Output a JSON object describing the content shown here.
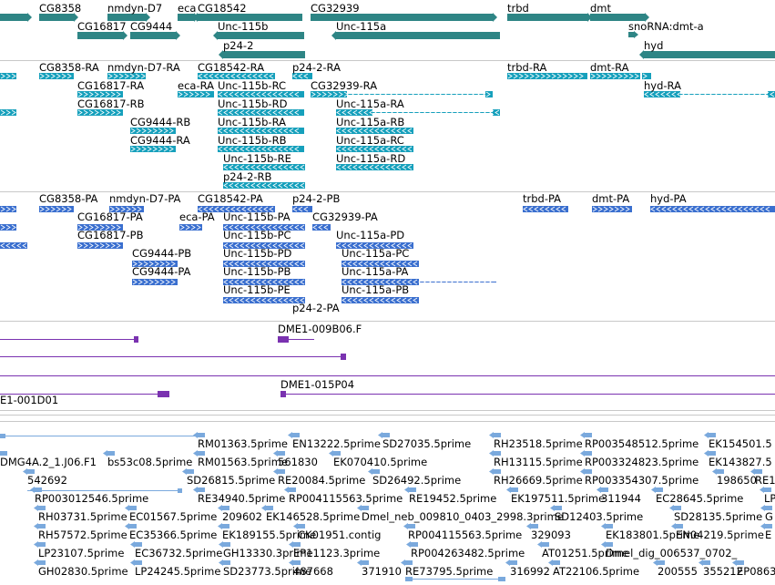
{
  "colors": {
    "gene": "#2e8585",
    "transcript_ra": "#16a0bc",
    "transcript_pa": "#3a6fcf",
    "clone": "#7a32b0",
    "est": "#7aa9dd",
    "separator": "#c8c8c8"
  },
  "tracks": {
    "gene_track": {
      "features": [
        {
          "id": "g1",
          "label": ""
        },
        {
          "id": "g2",
          "label": "CG8358"
        },
        {
          "id": "g3",
          "label": "nmdyn-D7"
        },
        {
          "id": "g4",
          "label": "eca"
        },
        {
          "id": "g5",
          "label": "CG18542"
        },
        {
          "id": "g6",
          "label": "CG32939"
        },
        {
          "id": "g7",
          "label": "trbd"
        },
        {
          "id": "g8",
          "label": "dmt"
        },
        {
          "id": "g9",
          "label": "CG16817"
        },
        {
          "id": "g10",
          "label": "CG9444"
        },
        {
          "id": "g11",
          "label": "Unc-115b"
        },
        {
          "id": "g12",
          "label": "Unc-115a"
        },
        {
          "id": "g13",
          "label": "snoRNA:dmt-a"
        },
        {
          "id": "g14",
          "label": "p24-2"
        },
        {
          "id": "g15",
          "label": "hyd"
        }
      ]
    },
    "ra_track": {
      "features": [
        {
          "id": "r1",
          "label": ""
        },
        {
          "id": "r2",
          "label": "CG8358-RA"
        },
        {
          "id": "r3",
          "label": "nmdyn-D7-RA"
        },
        {
          "id": "r4",
          "label": "CG18542-RA"
        },
        {
          "id": "r5",
          "label": "p24-2-RA"
        },
        {
          "id": "r6",
          "label": "trbd-RA"
        },
        {
          "id": "r7",
          "label": "dmt-RA"
        },
        {
          "id": "r8",
          "label": ""
        },
        {
          "id": "r9",
          "label": "CG16817-RA"
        },
        {
          "id": "r10",
          "label": "eca-RA"
        },
        {
          "id": "r11",
          "label": "Unc-115b-RC"
        },
        {
          "id": "r12",
          "label": "CG32939-RA"
        },
        {
          "id": "r13",
          "label": "hyd-RA"
        },
        {
          "id": "r14",
          "label": ""
        },
        {
          "id": "r15",
          "label": "CG16817-RB"
        },
        {
          "id": "r16",
          "label": "Unc-115b-RD"
        },
        {
          "id": "r17",
          "label": "Unc-115a-RA"
        },
        {
          "id": "r18",
          "label": "CG9444-RB"
        },
        {
          "id": "r19",
          "label": "Unc-115b-RA"
        },
        {
          "id": "r20",
          "label": "Unc-115a-RB"
        },
        {
          "id": "r21",
          "label": "CG9444-RA"
        },
        {
          "id": "r22",
          "label": "Unc-115b-RB"
        },
        {
          "id": "r23",
          "label": "Unc-115a-RC"
        },
        {
          "id": "r24",
          "label": "Unc-115b-RE"
        },
        {
          "id": "r25",
          "label": "Unc-115a-RD"
        },
        {
          "id": "r26",
          "label": "p24-2-RB"
        }
      ]
    },
    "pa_track": {
      "features": [
        {
          "id": "p1",
          "label": ""
        },
        {
          "id": "p2",
          "label": "CG8358-PA"
        },
        {
          "id": "p3",
          "label": "nmdyn-D7-PA"
        },
        {
          "id": "p4",
          "label": "CG18542-PA"
        },
        {
          "id": "p5",
          "label": "p24-2-PB"
        },
        {
          "id": "p6",
          "label": "trbd-PA"
        },
        {
          "id": "p7",
          "label": "dmt-PA"
        },
        {
          "id": "p8",
          "label": "hyd-PA"
        },
        {
          "id": "p9",
          "label": ""
        },
        {
          "id": "p10",
          "label": "CG16817-PA"
        },
        {
          "id": "p11",
          "label": "eca-PA"
        },
        {
          "id": "p12",
          "label": "Unc-115b-PA"
        },
        {
          "id": "p13",
          "label": "CG32939-PA"
        },
        {
          "id": "p14",
          "label": ""
        },
        {
          "id": "p15",
          "label": "CG16817-PB"
        },
        {
          "id": "p16",
          "label": "Unc-115b-PC"
        },
        {
          "id": "p17",
          "label": "Unc-115a-PD"
        },
        {
          "id": "p18",
          "label": "CG9444-PB"
        },
        {
          "id": "p19",
          "label": "Unc-115b-PD"
        },
        {
          "id": "p20",
          "label": "Unc-115a-PC"
        },
        {
          "id": "p21",
          "label": "CG9444-PA"
        },
        {
          "id": "p22",
          "label": "Unc-115b-PB"
        },
        {
          "id": "p23",
          "label": "Unc-115a-PA"
        },
        {
          "id": "p24",
          "label": "Unc-115b-PE"
        },
        {
          "id": "p25",
          "label": "Unc-115a-PB"
        },
        {
          "id": "p26",
          "label": "p24-2-PA"
        }
      ]
    },
    "clone_track": {
      "features": [
        {
          "id": "c1",
          "label": "DME1-009B06.F"
        },
        {
          "id": "c2",
          "label": ""
        },
        {
          "id": "c3",
          "label": ""
        },
        {
          "id": "c4",
          "label": "DME1-015P04"
        },
        {
          "id": "c5",
          "label": "E1-001D01"
        },
        {
          "id": "c6",
          "label": ""
        }
      ]
    },
    "est_track": {
      "labels": [
        "RM01363.5prime",
        "EN13222.5prime",
        "SD27035.5prime",
        "RH23518.5prime",
        "RP003548512.5prime",
        "EK154501.5",
        "DMG4A.2_1.J06.F1",
        "bs53c08.5prime",
        "RM01563.5prime",
        "561830",
        "EK070410.5prime",
        "RH13115.5prime",
        "RP003324823.5prime",
        "EK143827.5",
        "542692",
        "SD26815.5prime",
        "RE20084.5prime",
        "SD26492.5prime",
        "RH26669.5prime",
        "RP003354307.5prime",
        "198650",
        "RE1",
        "RP003012546.5prime",
        "RE34940.5prime",
        "RP004115563.5prime",
        "RE19452.5prime",
        "EK197511.5prime",
        "311944",
        "EC28645.5prime",
        "LP",
        "RH03731.5prime",
        "EC01567.5prime",
        "209602",
        "EK146528.5prime",
        "Dmel_neb_009810_0403_2998.3prime",
        "SD12403.5prime",
        "SD28135.5prime",
        "G",
        "RH57572.5prime",
        "EC35366.5prime",
        "EK189155.5prime",
        "CK01951.contig",
        "RP004115563.5prime",
        "329093",
        "EK183801.5prime",
        "EN04219.5prime",
        "E",
        "LP23107.5prime",
        "EC36732.5prime",
        "GH13330.3prime",
        "EP11123.3prime",
        "RP004263482.5prime",
        "AT01251.5prime",
        "Dmel_dig_006537_0702_",
        "GH02830.5prime",
        "LP24245.5prime",
        "SD23773.5prime",
        "487668",
        "371910",
        "RE73795.5prime",
        "316992",
        "AT22106.5prime",
        "200555",
        "355212",
        "EP0863"
      ]
    }
  }
}
